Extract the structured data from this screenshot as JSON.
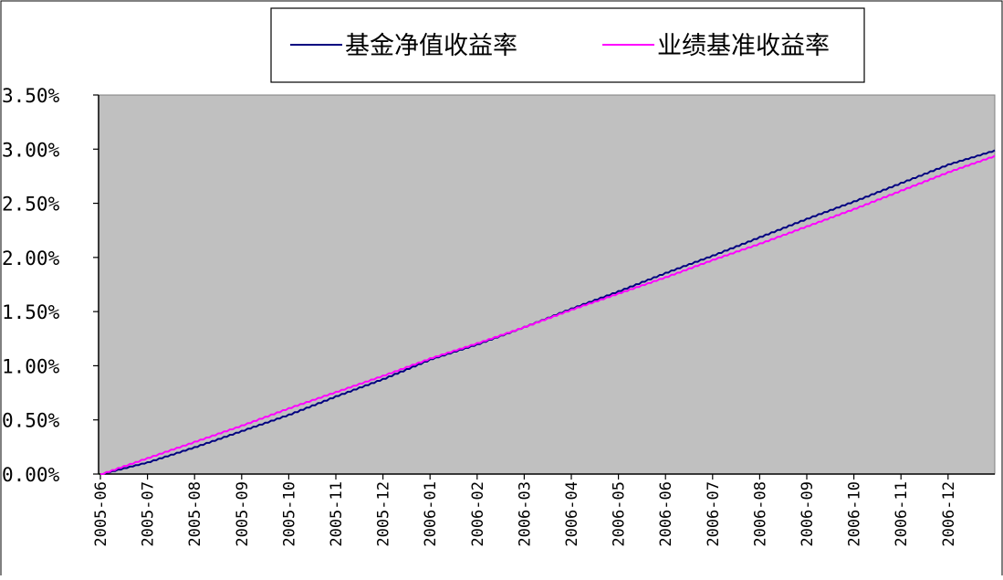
{
  "chart_data": {
    "type": "line",
    "title": "",
    "xlabel": "",
    "ylabel": "",
    "x_categories": [
      "2005-06",
      "2005-07",
      "2005-08",
      "2005-09",
      "2005-10",
      "2005-11",
      "2005-12",
      "2006-01",
      "2006-02",
      "2006-03",
      "2006-04",
      "2006-05",
      "2006-06",
      "2006-07",
      "2006-08",
      "2006-09",
      "2006-10",
      "2006-11",
      "2006-12"
    ],
    "y_ticks": [
      "0.00%",
      "0.50%",
      "1.00%",
      "1.50%",
      "2.00%",
      "2.50%",
      "3.00%",
      "3.50%"
    ],
    "ylim": [
      0,
      3.5
    ],
    "y_unit": "%",
    "grid": false,
    "plot_background": "#c0c0c0",
    "legend": {
      "position": "top"
    },
    "series": [
      {
        "name": "基金净值收益率",
        "color": "#000080",
        "x": [
          "2005-06",
          "2005-07",
          "2005-08",
          "2005-09",
          "2005-10",
          "2005-11",
          "2005-12",
          "2006-01",
          "2006-02",
          "2006-03",
          "2006-04",
          "2006-05",
          "2006-06",
          "2006-07",
          "2006-08",
          "2006-09",
          "2006-10",
          "2006-11",
          "2006-12",
          "2006-12-31"
        ],
        "values": [
          0.0,
          0.11,
          0.25,
          0.4,
          0.55,
          0.72,
          0.88,
          1.06,
          1.2,
          1.36,
          1.53,
          1.69,
          1.86,
          2.02,
          2.19,
          2.36,
          2.52,
          2.69,
          2.86,
          2.99
        ]
      },
      {
        "name": "业绩基准收益率",
        "color": "#ff00ff",
        "x": [
          "2005-06",
          "2005-07",
          "2005-08",
          "2005-09",
          "2005-10",
          "2005-11",
          "2005-12",
          "2006-01",
          "2006-02",
          "2006-03",
          "2006-04",
          "2006-05",
          "2006-06",
          "2006-07",
          "2006-08",
          "2006-09",
          "2006-10",
          "2006-11",
          "2006-12",
          "2006-12-31"
        ],
        "values": [
          0.0,
          0.15,
          0.3,
          0.45,
          0.61,
          0.76,
          0.91,
          1.07,
          1.21,
          1.36,
          1.52,
          1.67,
          1.82,
          1.98,
          2.13,
          2.29,
          2.45,
          2.62,
          2.79,
          2.94
        ]
      }
    ]
  }
}
